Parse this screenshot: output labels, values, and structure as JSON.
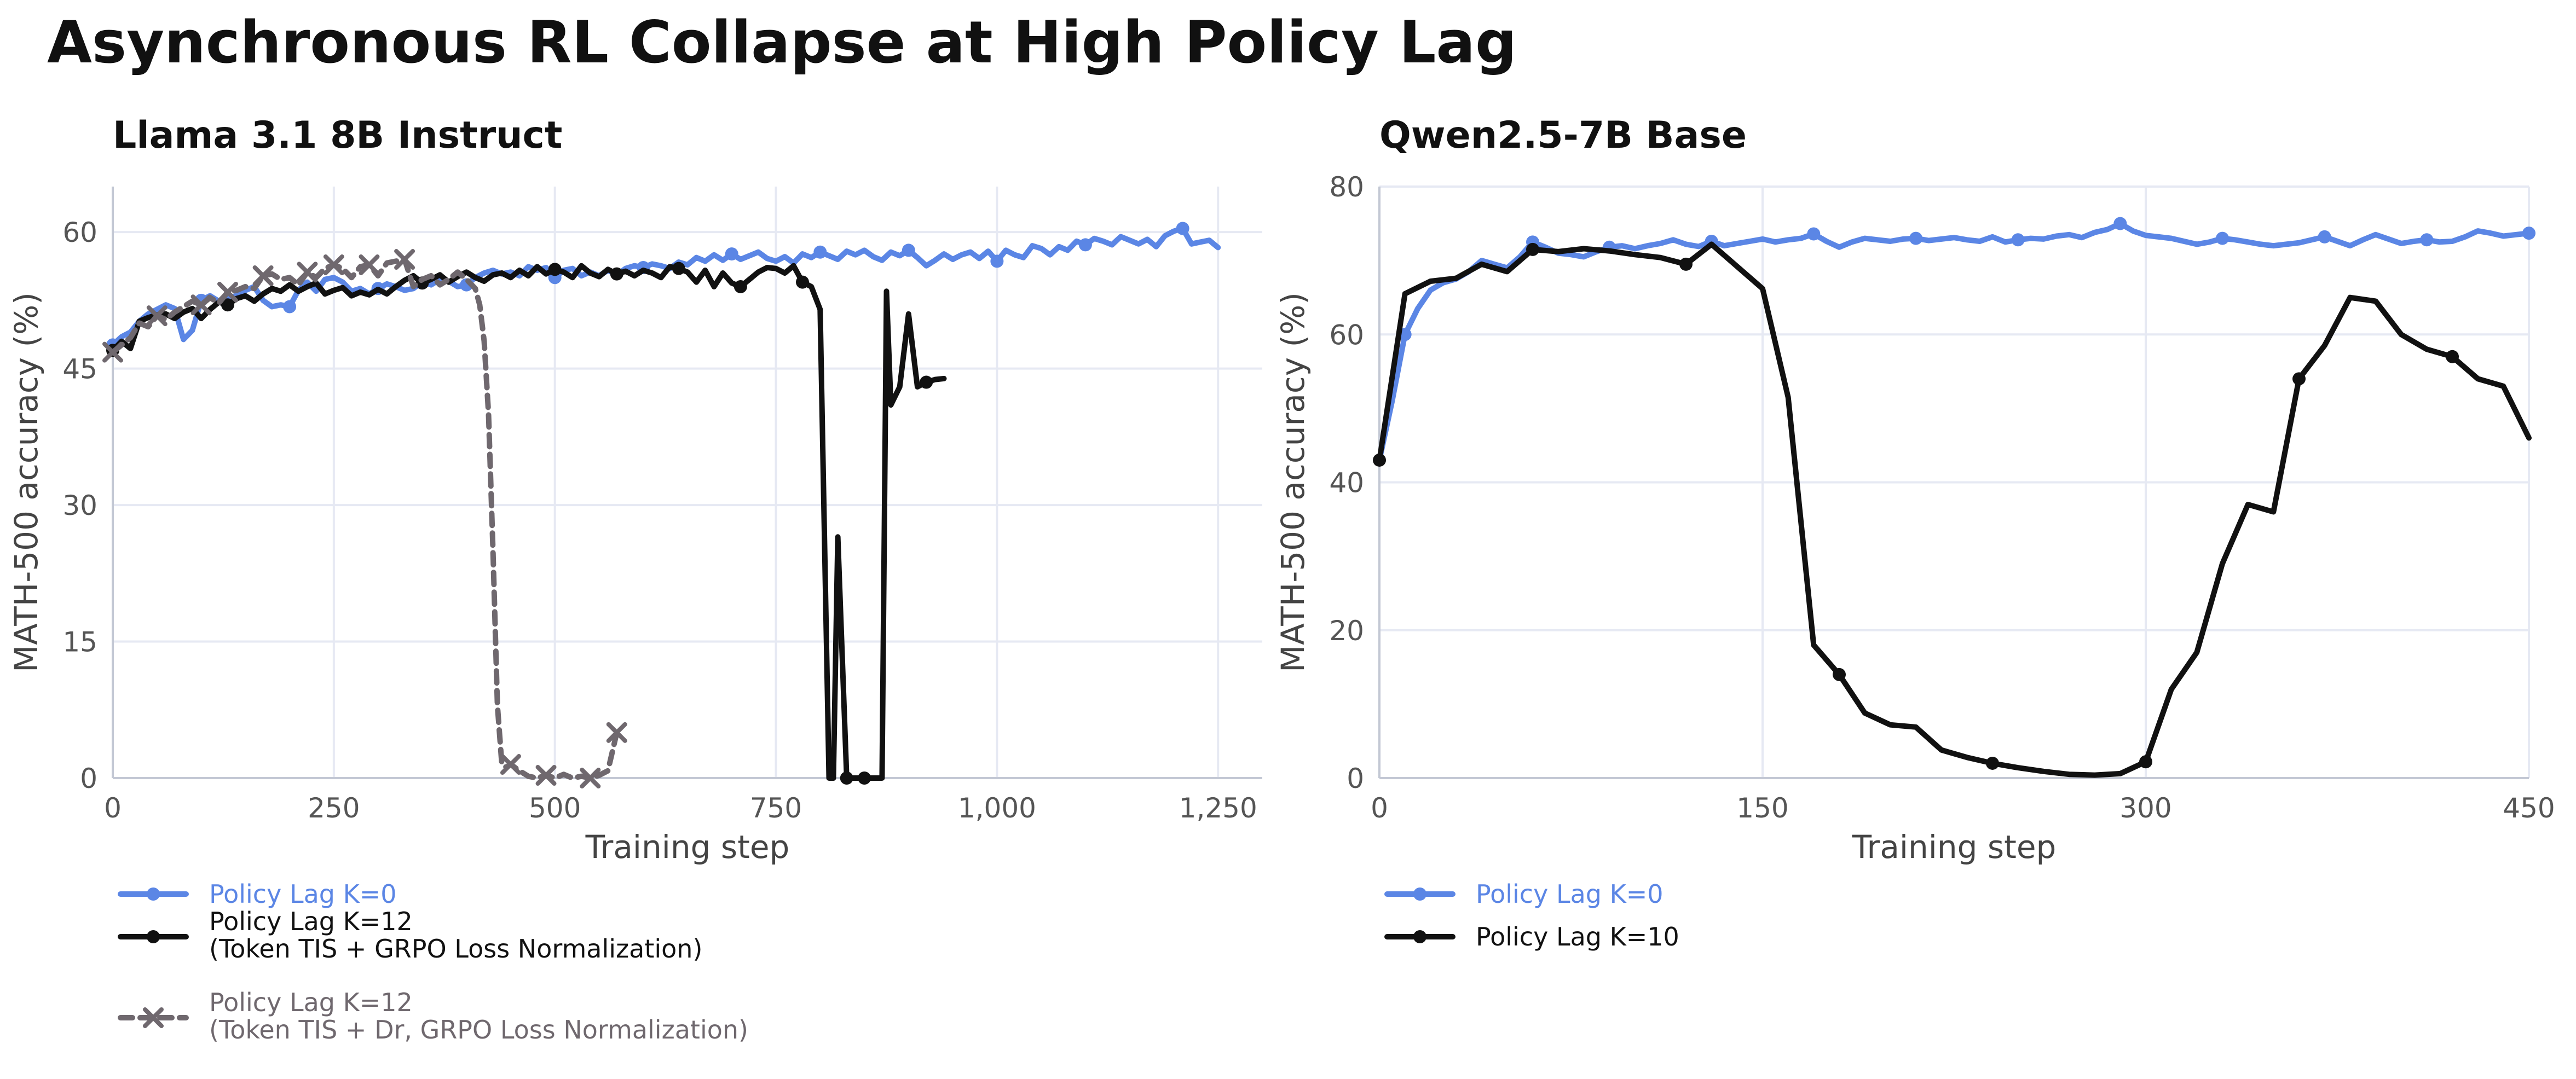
{
  "figure": {
    "title": "Asynchronous RL Collapse at High Policy Lag"
  },
  "colors": {
    "blue": "#5b86e5",
    "black": "#111111",
    "gray": "#6f686e",
    "grid": "#e6e9f3",
    "axis": "#c3c8d4",
    "tick": "#555555",
    "label": "#444444"
  },
  "chart_data": [
    {
      "type": "line",
      "title": "Llama 3.1 8B Instruct",
      "xlabel": "Training step",
      "ylabel": "MATH-500 accuracy (%)",
      "xlim": [
        0,
        1300
      ],
      "ylim": [
        0,
        65
      ],
      "xticks": [
        0,
        250,
        500,
        750,
        1000,
        1250
      ],
      "xtick_labels": [
        "0",
        "250",
        "500",
        "750",
        "1,000",
        "1,250"
      ],
      "yticks": [
        0,
        15,
        30,
        45,
        60
      ],
      "ytick_labels": [
        "0",
        "15",
        "30",
        "45",
        "60"
      ],
      "grid": true,
      "legend_position": "below",
      "series": [
        {
          "name": "Policy Lag K=0",
          "color": "blue",
          "style": "solid",
          "marker": "circle",
          "x": [
            0,
            10,
            20,
            30,
            40,
            50,
            60,
            70,
            80,
            90,
            100,
            110,
            120,
            130,
            140,
            150,
            160,
            170,
            180,
            190,
            200,
            210,
            220,
            230,
            240,
            250,
            260,
            270,
            280,
            290,
            300,
            310,
            320,
            330,
            340,
            350,
            360,
            370,
            380,
            390,
            400,
            410,
            420,
            430,
            440,
            450,
            460,
            470,
            480,
            490,
            500,
            510,
            520,
            530,
            540,
            550,
            560,
            570,
            580,
            590,
            600,
            610,
            620,
            630,
            640,
            650,
            660,
            670,
            680,
            690,
            700,
            710,
            720,
            730,
            740,
            750,
            760,
            770,
            780,
            790,
            800,
            810,
            820,
            830,
            840,
            850,
            860,
            870,
            880,
            890,
            900,
            910,
            920,
            930,
            940,
            950,
            960,
            970,
            980,
            990,
            1000,
            1010,
            1020,
            1030,
            1040,
            1050,
            1060,
            1070,
            1080,
            1090,
            1100,
            1110,
            1120,
            1130,
            1140,
            1150,
            1160,
            1170,
            1180,
            1190,
            1200,
            1210,
            1220,
            1230,
            1240,
            1250
          ],
          "y": [
            47.6,
            48.5,
            49.0,
            50.2,
            51.0,
            51.5,
            52.0,
            51.6,
            48.2,
            49.2,
            52.5,
            53.0,
            52.4,
            52.8,
            53.0,
            53.6,
            54.0,
            52.5,
            51.8,
            52.0,
            51.8,
            53.6,
            54.5,
            53.5,
            54.8,
            55.0,
            54.5,
            53.5,
            53.8,
            53.2,
            53.8,
            54.3,
            54.0,
            53.6,
            53.8,
            54.5,
            54.2,
            54.8,
            54.6,
            54.0,
            54.2,
            55.0,
            55.5,
            55.8,
            55.4,
            55.6,
            55.2,
            56.2,
            55.8,
            56.1,
            55.0,
            55.8,
            56.0,
            55.2,
            55.6,
            55.2,
            55.8,
            55.3,
            56.0,
            56.3,
            56.1,
            56.5,
            56.3,
            56.0,
            56.7,
            56.4,
            57.2,
            56.8,
            57.5,
            56.9,
            57.6,
            57.0,
            57.4,
            57.8,
            57.1,
            56.8,
            57.3,
            56.6,
            57.6,
            57.2,
            57.8,
            57.4,
            57.0,
            57.9,
            57.5,
            58.0,
            57.3,
            56.9,
            57.8,
            57.4,
            58.0,
            57.2,
            56.3,
            56.9,
            57.6,
            57.0,
            57.5,
            57.8,
            57.1,
            57.9,
            56.8,
            58.0,
            57.5,
            57.2,
            58.5,
            58.2,
            57.5,
            58.4,
            58.0,
            59.0,
            58.6,
            59.3,
            59.0,
            58.6,
            59.5,
            59.1,
            58.7,
            59.2,
            58.4,
            59.6,
            60.1,
            60.4,
            58.7,
            58.9,
            59.1,
            58.3
          ],
          "markers_at": [
            0,
            100,
            200,
            300,
            400,
            500,
            600,
            700,
            800,
            900,
            1000,
            1100,
            1210
          ]
        },
        {
          "name": "Policy Lag K=12\n(Token TIS + GRPO Loss Normalization)",
          "color": "black",
          "style": "solid",
          "marker": "circle",
          "x": [
            0,
            10,
            20,
            30,
            40,
            50,
            60,
            70,
            80,
            90,
            100,
            110,
            120,
            130,
            140,
            150,
            160,
            170,
            180,
            190,
            200,
            210,
            220,
            230,
            240,
            250,
            260,
            270,
            280,
            290,
            300,
            310,
            320,
            330,
            340,
            350,
            360,
            370,
            380,
            390,
            400,
            410,
            420,
            430,
            440,
            450,
            460,
            470,
            480,
            490,
            500,
            510,
            520,
            530,
            540,
            550,
            560,
            570,
            580,
            590,
            600,
            610,
            620,
            630,
            640,
            650,
            660,
            670,
            680,
            690,
            700,
            710,
            720,
            730,
            740,
            750,
            760,
            770,
            780,
            790,
            800,
            810,
            815,
            820,
            830,
            840,
            850,
            860,
            870,
            875,
            880,
            890,
            900,
            910,
            920,
            930,
            940
          ],
          "y": [
            47.0,
            48.0,
            47.2,
            50.2,
            50.6,
            50.9,
            51.0,
            50.5,
            51.2,
            51.6,
            50.5,
            51.5,
            52.3,
            52.0,
            52.7,
            53.0,
            52.4,
            53.2,
            53.8,
            53.5,
            54.2,
            53.5,
            54.0,
            54.4,
            53.2,
            53.6,
            53.9,
            53.0,
            53.4,
            53.1,
            53.7,
            53.2,
            54.0,
            54.7,
            55.2,
            54.4,
            54.8,
            55.3,
            54.5,
            55.1,
            55.6,
            55.0,
            54.6,
            55.3,
            55.5,
            55.0,
            55.8,
            55.2,
            56.2,
            55.4,
            55.9,
            55.6,
            55.0,
            56.3,
            55.5,
            55.1,
            55.9,
            55.4,
            55.7,
            55.2,
            55.8,
            55.5,
            55.0,
            56.2,
            56.0,
            55.6,
            54.5,
            55.8,
            54.0,
            55.5,
            54.4,
            54.0,
            54.8,
            55.6,
            56.1,
            56.0,
            55.5,
            56.3,
            54.5,
            54.0,
            51.5,
            0,
            0,
            26.5,
            0,
            0,
            0,
            0,
            0,
            53.5,
            41.0,
            43.0,
            51.0,
            43.0,
            43.5,
            43.8,
            43.9
          ],
          "markers_at": [
            0,
            130,
            350,
            500,
            570,
            640,
            710,
            780,
            830,
            850,
            920
          ]
        },
        {
          "name": "Policy Lag K=12\n(Token TIS + Dr, GRPO Loss Normalization)",
          "color": "gray",
          "style": "dashed",
          "marker": "x",
          "x": [
            0,
            10,
            20,
            30,
            40,
            50,
            60,
            70,
            80,
            90,
            100,
            110,
            120,
            130,
            140,
            150,
            160,
            170,
            180,
            190,
            200,
            210,
            220,
            230,
            240,
            250,
            260,
            270,
            280,
            290,
            300,
            310,
            320,
            330,
            340,
            350,
            360,
            370,
            380,
            390,
            400,
            410,
            415,
            420,
            425,
            430,
            435,
            440,
            445,
            450,
            460,
            470,
            480,
            490,
            500,
            510,
            520,
            530,
            540,
            550,
            560,
            570,
            575
          ],
          "y": [
            46.8,
            47.6,
            48.4,
            50.0,
            49.6,
            50.8,
            50.4,
            51.2,
            51.8,
            52.4,
            52.0,
            52.8,
            52.2,
            53.4,
            53.6,
            54.0,
            53.8,
            55.2,
            55.4,
            54.8,
            55.0,
            54.2,
            55.6,
            55.0,
            56.0,
            56.4,
            56.0,
            55.0,
            56.2,
            56.4,
            55.2,
            56.6,
            56.8,
            57.0,
            54.0,
            54.8,
            55.2,
            54.2,
            54.8,
            55.6,
            54.8,
            53.8,
            52.0,
            48.0,
            40.0,
            25.0,
            8.0,
            1.5,
            1.2,
            1.5,
            0.8,
            0.2,
            0.0,
            0.3,
            0.0,
            0.4,
            0.0,
            0.2,
            0.0,
            0.3,
            0.8,
            5.0,
            5.5
          ],
          "markers_at": [
            0,
            50,
            100,
            130,
            170,
            220,
            250,
            290,
            330,
            450,
            490,
            540,
            570
          ]
        }
      ]
    },
    {
      "type": "line",
      "title": "Qwen2.5-7B Base",
      "xlabel": "Training step",
      "ylabel": "MATH-500 accuracy (%)",
      "xlim": [
        0,
        450
      ],
      "ylim": [
        0,
        80
      ],
      "xticks": [
        0,
        150,
        300,
        450
      ],
      "xtick_labels": [
        "0",
        "150",
        "300",
        "450"
      ],
      "yticks": [
        0,
        20,
        40,
        60,
        80
      ],
      "ytick_labels": [
        "0",
        "20",
        "40",
        "60",
        "80"
      ],
      "grid": true,
      "legend_position": "below",
      "series": [
        {
          "name": "Policy Lag K=0",
          "color": "blue",
          "style": "solid",
          "marker": "circle",
          "x": [
            0,
            5,
            10,
            15,
            20,
            25,
            30,
            35,
            40,
            45,
            50,
            55,
            60,
            65,
            70,
            75,
            80,
            85,
            90,
            95,
            100,
            105,
            110,
            115,
            120,
            125,
            130,
            135,
            140,
            145,
            150,
            155,
            160,
            165,
            170,
            175,
            180,
            185,
            190,
            195,
            200,
            205,
            210,
            215,
            220,
            225,
            230,
            235,
            240,
            245,
            250,
            255,
            260,
            265,
            270,
            275,
            280,
            285,
            290,
            295,
            300,
            305,
            310,
            315,
            320,
            325,
            330,
            335,
            340,
            345,
            350,
            355,
            360,
            365,
            370,
            375,
            380,
            385,
            390,
            395,
            400,
            405,
            410,
            415,
            420,
            425,
            430,
            435,
            440,
            445,
            450
          ],
          "y": [
            43.0,
            51.0,
            60.0,
            63.5,
            66.0,
            67.0,
            67.5,
            68.5,
            70.0,
            69.5,
            69.0,
            70.5,
            72.5,
            71.8,
            71.0,
            70.8,
            70.5,
            71.2,
            71.8,
            72.0,
            71.6,
            72.0,
            72.3,
            72.8,
            72.2,
            71.9,
            72.6,
            72.0,
            72.3,
            72.6,
            72.9,
            72.5,
            72.8,
            73.0,
            73.6,
            72.6,
            71.8,
            72.5,
            73.0,
            72.8,
            72.6,
            72.9,
            73.0,
            72.7,
            72.9,
            73.1,
            72.8,
            72.6,
            73.2,
            72.5,
            72.8,
            73.0,
            72.9,
            73.3,
            73.5,
            73.1,
            73.8,
            74.2,
            75.0,
            74.0,
            73.4,
            73.2,
            73.0,
            72.6,
            72.2,
            72.5,
            73.0,
            72.8,
            72.5,
            72.2,
            72.0,
            72.2,
            72.4,
            72.8,
            73.2,
            72.6,
            72.0,
            72.8,
            73.5,
            72.9,
            72.3,
            72.6,
            72.8,
            72.5,
            72.6,
            73.2,
            74.0,
            73.7,
            73.3,
            73.5,
            73.7
          ],
          "markers_at": [
            10,
            60,
            90,
            130,
            170,
            210,
            250,
            290,
            330,
            370,
            410,
            450
          ]
        },
        {
          "name": "Policy Lag K=10",
          "color": "black",
          "style": "solid",
          "marker": "circle",
          "x": [
            0,
            10,
            20,
            30,
            40,
            50,
            60,
            70,
            80,
            90,
            100,
            110,
            120,
            130,
            140,
            150,
            160,
            170,
            180,
            190,
            200,
            210,
            220,
            230,
            240,
            250,
            260,
            270,
            280,
            290,
            300,
            310,
            320,
            330,
            340,
            350,
            360,
            370,
            380,
            390,
            400,
            410,
            420,
            430,
            440,
            450
          ],
          "y": [
            43.0,
            65.5,
            67.2,
            67.6,
            69.5,
            68.5,
            71.5,
            71.2,
            71.6,
            71.3,
            70.8,
            70.4,
            69.5,
            72.2,
            69.2,
            66.2,
            51.5,
            18.0,
            14.0,
            8.8,
            7.2,
            6.9,
            3.8,
            2.8,
            2.0,
            1.4,
            0.9,
            0.5,
            0.4,
            0.6,
            2.2,
            12.0,
            17.0,
            29.0,
            37.0,
            36.0,
            54.0,
            58.5,
            65.0,
            64.5,
            60.0,
            58.0,
            57.0,
            54.0,
            53.0,
            46.0
          ],
          "markers_at": [
            0,
            60,
            120,
            180,
            240,
            300,
            360,
            420
          ]
        }
      ]
    }
  ]
}
